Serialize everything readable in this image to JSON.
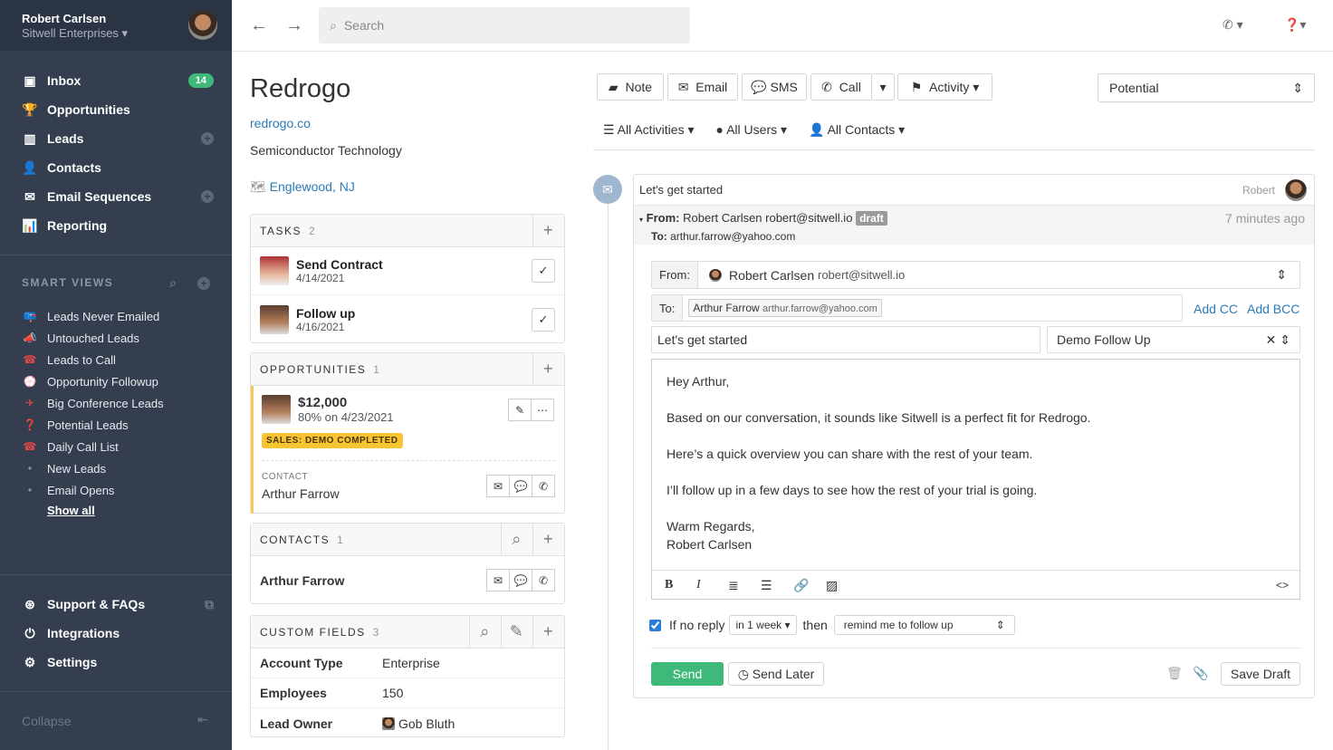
{
  "user": {
    "name": "Robert Carlsen",
    "org": "Sitwell Enterprises"
  },
  "nav": [
    {
      "label": "Inbox",
      "icon": "inbox-icon",
      "badge": "14"
    },
    {
      "label": "Opportunities",
      "icon": "trophy-icon"
    },
    {
      "label": "Leads",
      "icon": "building-icon",
      "add": true
    },
    {
      "label": "Contacts",
      "icon": "person-icon"
    },
    {
      "label": "Email Sequences",
      "icon": "envelopes-icon",
      "add": true
    },
    {
      "label": "Reporting",
      "icon": "chart-icon"
    }
  ],
  "smart_views": {
    "title": "SMART VIEWS",
    "items": [
      {
        "label": "Leads Never Emailed",
        "icon": "📪"
      },
      {
        "label": "Untouched Leads",
        "icon": "📣"
      },
      {
        "label": "Leads to Call",
        "icon": "☎"
      },
      {
        "label": "Opportunity Followup",
        "icon": "💮"
      },
      {
        "label": "Big Conference Leads",
        "icon": "✈"
      },
      {
        "label": "Potential Leads",
        "icon": "❓"
      },
      {
        "label": "Daily Call List",
        "icon": "☎"
      },
      {
        "label": "New Leads",
        "icon": "•"
      },
      {
        "label": "Email Opens",
        "icon": "•"
      }
    ],
    "show_all": "Show all"
  },
  "bottom_nav": [
    {
      "label": "Support & FAQs"
    },
    {
      "label": "Integrations"
    },
    {
      "label": "Settings"
    }
  ],
  "collapse": "Collapse",
  "search_placeholder": "Search",
  "lead": {
    "name": "Redrogo",
    "url": "redrogo.co",
    "industry": "Semiconductor Technology",
    "location": "Englewood, NJ"
  },
  "tasks": {
    "title": "TASKS",
    "count": "2",
    "items": [
      {
        "title": "Send Contract",
        "date": "4/14/2021"
      },
      {
        "title": "Follow up",
        "date": "4/16/2021"
      }
    ]
  },
  "opportunities": {
    "title": "OPPORTUNITIES",
    "count": "1",
    "value": "$12,000",
    "detail": "80% on 4/23/2021",
    "status": "SALES: DEMO COMPLETED",
    "contact_label": "CONTACT",
    "contact": "Arthur Farrow",
    "status_color": "#f7c433"
  },
  "contacts": {
    "title": "CONTACTS",
    "count": "1",
    "items": [
      {
        "name": "Arthur Farrow"
      }
    ]
  },
  "custom_fields": {
    "title": "CUSTOM FIELDS",
    "count": "3",
    "rows": [
      {
        "k": "Account Type",
        "v": "Enterprise"
      },
      {
        "k": "Employees",
        "v": "150"
      },
      {
        "k": "Lead Owner",
        "v": "Gob Bluth"
      }
    ]
  },
  "actions": {
    "note": "Note",
    "email": "Email",
    "sms": "SMS",
    "call": "Call",
    "activity": "Activity"
  },
  "status_select": "Potential",
  "filters": {
    "activities": "All Activities",
    "users": "All Users",
    "contacts": "All Contacts"
  },
  "email": {
    "subject": "Let's get started",
    "author": "Robert",
    "from_label": "From:",
    "from": "Robert Carlsen robert@sitwell.io",
    "draft": "draft",
    "time": "7 minutes ago",
    "to_label": "To:",
    "to": "arthur.farrow@yahoo.com",
    "form": {
      "from_label": "From:",
      "from_name": "Robert Carlsen",
      "from_email": "robert@sitwell.io",
      "to_label": "To:",
      "to_name": "Arthur Farrow",
      "to_email": "arthur.farrow@yahoo.com",
      "add_cc": "Add CC",
      "add_bcc": "Add BCC",
      "subject": "Let's get started",
      "template": "Demo Follow Up"
    },
    "body": [
      "Hey Arthur,",
      "Based on our conversation, it sounds like Sitwell is a perfect fit for Redrogo.",
      "Here’s a quick overview you can share with the rest of your team.",
      "I’ll follow up in a few days to see how the rest of your trial is going.",
      "Warm Regards,",
      "Robert Carlsen"
    ],
    "followup": {
      "checked": true,
      "label": "If no reply",
      "interval": "in 1 week",
      "then": "then",
      "action": "remind me to follow up"
    },
    "send": "Send",
    "send_later": "Send Later",
    "save_draft": "Save Draft"
  },
  "colors": {
    "sidebar": "#343e4e",
    "send": "#3eb97a",
    "link": "#2b7bb9"
  }
}
